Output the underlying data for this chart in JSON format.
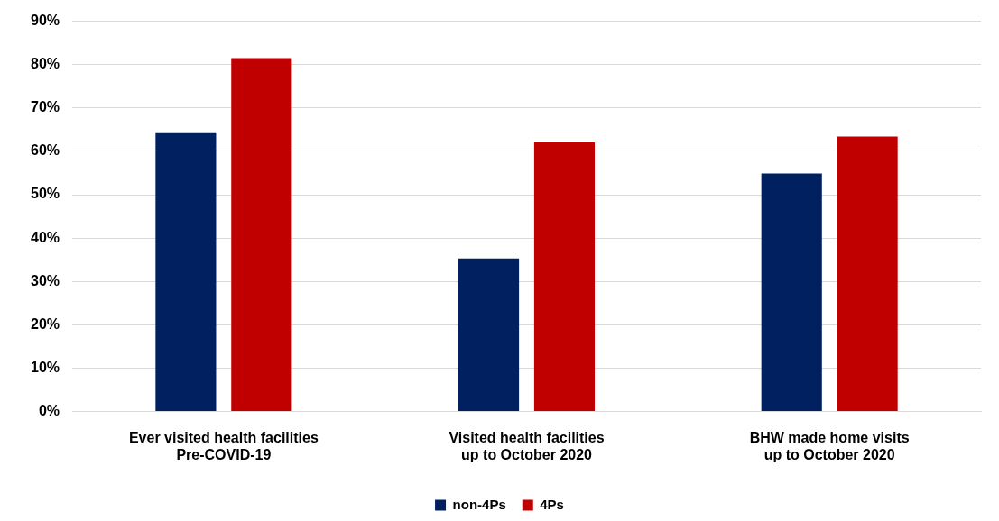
{
  "chart_data": {
    "type": "bar",
    "categories": [
      "Ever visited health facilities\nPre-COVID-19",
      "Visited health facilities\nup to October 2020",
      "BHW made home visits\nup to October 2020"
    ],
    "series": [
      {
        "name": "non-4Ps",
        "color": "#002060",
        "values": [
          64.4,
          35.3,
          54.9
        ]
      },
      {
        "name": "4Ps",
        "color": "#c00000",
        "values": [
          81.5,
          62.1,
          63.4
        ]
      }
    ],
    "ylim": [
      0,
      90
    ],
    "yticks": [
      {
        "value": 0,
        "label": "0%"
      },
      {
        "value": 10,
        "label": "10%"
      },
      {
        "value": 20,
        "label": "20%"
      },
      {
        "value": 30,
        "label": "30%"
      },
      {
        "value": 40,
        "label": "40%"
      },
      {
        "value": 50,
        "label": "50%"
      },
      {
        "value": 60,
        "label": "60%"
      },
      {
        "value": 70,
        "label": "70%"
      },
      {
        "value": 80,
        "label": "80%"
      },
      {
        "value": 90,
        "label": "90%"
      }
    ],
    "grid": "y",
    "legend": "bottom"
  }
}
